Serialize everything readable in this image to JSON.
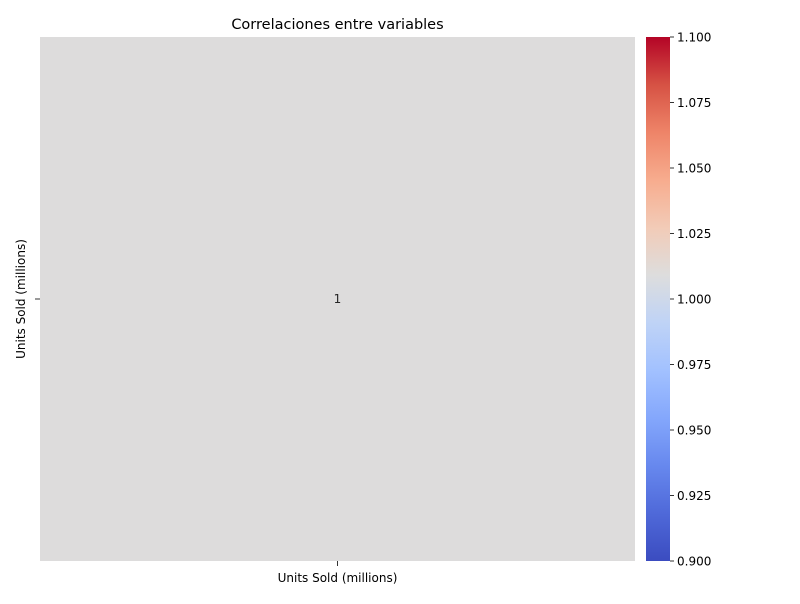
{
  "chart_data": {
    "type": "heatmap",
    "title": "Correlaciones entre variables",
    "row_labels": [
      "Units Sold (millions)"
    ],
    "col_labels": [
      "Units Sold (millions)"
    ],
    "values": [
      [
        1
      ]
    ],
    "cell_annotations": [
      [
        "1"
      ]
    ],
    "cell_color": "#dddcdc",
    "colormap": "coolwarm",
    "colorbar": {
      "range": [
        0.9,
        1.1
      ],
      "ticks": [
        0.9,
        0.925,
        0.95,
        0.975,
        1.0,
        1.025,
        1.05,
        1.075,
        1.1
      ],
      "tick_labels": [
        "0.900",
        "0.925",
        "0.950",
        "0.975",
        "1.000",
        "1.025",
        "1.050",
        "1.075",
        "1.100"
      ],
      "colors": [
        "#3b4cc0",
        "#4f69d9",
        "#6788ee",
        "#84a7fc",
        "#a2c1ff",
        "#bfd3f6",
        "#dddddd",
        "#f2cbb7",
        "#f7ac8e",
        "#ee8468",
        "#d65244",
        "#b40426"
      ]
    },
    "grid": false
  }
}
